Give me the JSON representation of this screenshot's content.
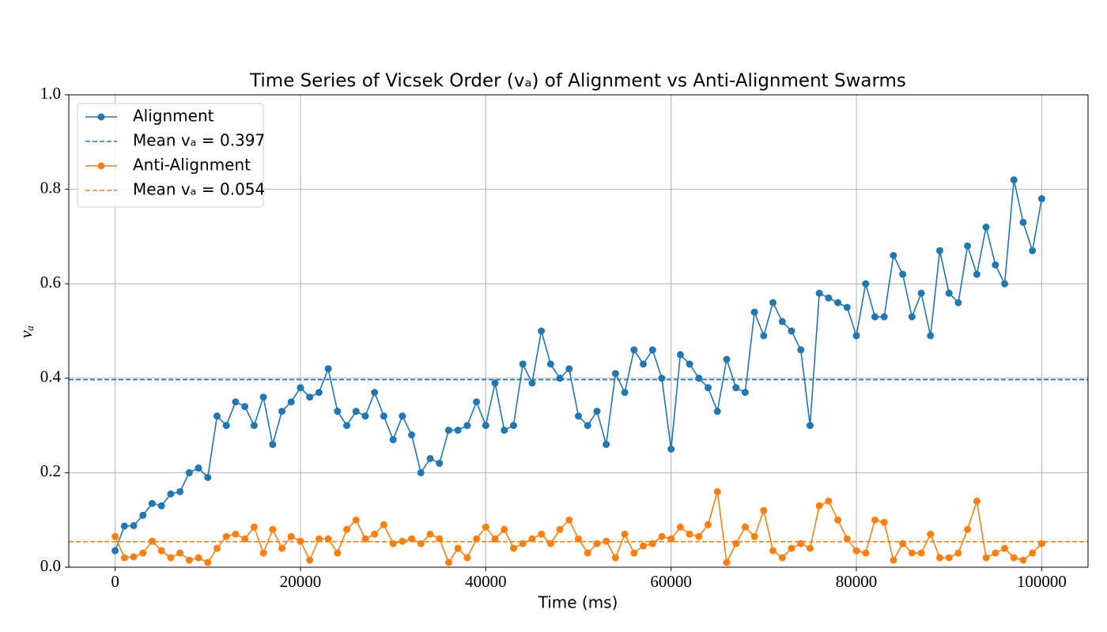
{
  "chart_data": {
    "type": "line",
    "title": "Time Series of Vicsek Order (vₐ) of Alignment vs Anti-Alignment Swarms",
    "x_label": "Time (ms)",
    "y_label": "vₐ",
    "x": [
      0,
      1000,
      2000,
      3000,
      4000,
      5000,
      6000,
      7000,
      8000,
      9000,
      10000,
      11000,
      12000,
      13000,
      14000,
      15000,
      16000,
      17000,
      18000,
      19000,
      20000,
      21000,
      22000,
      23000,
      24000,
      25000,
      26000,
      27000,
      28000,
      29000,
      30000,
      31000,
      32000,
      33000,
      34000,
      35000,
      36000,
      37000,
      38000,
      39000,
      40000,
      41000,
      42000,
      43000,
      44000,
      45000,
      46000,
      47000,
      48000,
      49000,
      50000,
      51000,
      52000,
      53000,
      54000,
      55000,
      56000,
      57000,
      58000,
      59000,
      60000,
      61000,
      62000,
      63000,
      64000,
      65000,
      66000,
      67000,
      68000,
      69000,
      70000,
      71000,
      72000,
      73000,
      74000,
      75000,
      76000,
      77000,
      78000,
      79000,
      80000,
      81000,
      82000,
      83000,
      84000,
      85000,
      86000,
      87000,
      88000,
      89000,
      90000,
      91000,
      92000,
      93000,
      94000,
      95000,
      96000,
      97000,
      98000,
      99000,
      100000
    ],
    "series": [
      {
        "name": "Alignment",
        "color": "#1f77b4",
        "values": [
          0.035,
          0.087,
          0.088,
          0.11,
          0.135,
          0.13,
          0.155,
          0.16,
          0.2,
          0.21,
          0.19,
          0.32,
          0.3,
          0.35,
          0.34,
          0.3,
          0.36,
          0.26,
          0.33,
          0.35,
          0.38,
          0.36,
          0.37,
          0.42,
          0.33,
          0.3,
          0.33,
          0.32,
          0.37,
          0.32,
          0.27,
          0.32,
          0.28,
          0.2,
          0.23,
          0.22,
          0.29,
          0.29,
          0.3,
          0.35,
          0.3,
          0.39,
          0.29,
          0.3,
          0.43,
          0.39,
          0.5,
          0.43,
          0.4,
          0.42,
          0.32,
          0.3,
          0.33,
          0.26,
          0.41,
          0.37,
          0.46,
          0.43,
          0.46,
          0.4,
          0.25,
          0.45,
          0.43,
          0.4,
          0.38,
          0.33,
          0.44,
          0.38,
          0.37,
          0.54,
          0.49,
          0.56,
          0.52,
          0.5,
          0.46,
          0.3,
          0.58,
          0.57,
          0.56,
          0.55,
          0.49,
          0.6,
          0.53,
          0.53,
          0.66,
          0.62,
          0.53,
          0.58,
          0.49,
          0.67,
          0.58,
          0.56,
          0.68,
          0.62,
          0.72,
          0.64,
          0.6,
          0.82,
          0.73,
          0.67,
          0.78
        ],
        "mean": {
          "label": "Mean vₐ = 0.397",
          "value": 0.397
        }
      },
      {
        "name": "Anti-Alignment",
        "color": "#ff7f0e",
        "values": [
          0.065,
          0.02,
          0.022,
          0.03,
          0.055,
          0.035,
          0.02,
          0.03,
          0.015,
          0.02,
          0.01,
          0.04,
          0.065,
          0.07,
          0.06,
          0.085,
          0.03,
          0.08,
          0.04,
          0.065,
          0.055,
          0.015,
          0.06,
          0.06,
          0.03,
          0.08,
          0.1,
          0.06,
          0.07,
          0.09,
          0.05,
          0.055,
          0.06,
          0.05,
          0.07,
          0.06,
          0.01,
          0.04,
          0.02,
          0.06,
          0.085,
          0.06,
          0.08,
          0.04,
          0.05,
          0.06,
          0.07,
          0.05,
          0.08,
          0.1,
          0.06,
          0.03,
          0.05,
          0.055,
          0.02,
          0.07,
          0.03,
          0.045,
          0.05,
          0.065,
          0.06,
          0.085,
          0.07,
          0.065,
          0.09,
          0.16,
          0.01,
          0.05,
          0.085,
          0.065,
          0.12,
          0.035,
          0.02,
          0.04,
          0.05,
          0.04,
          0.13,
          0.14,
          0.1,
          0.06,
          0.035,
          0.03,
          0.1,
          0.095,
          0.015,
          0.05,
          0.03,
          0.03,
          0.07,
          0.02,
          0.02,
          0.03,
          0.08,
          0.14,
          0.02,
          0.03,
          0.04,
          0.02,
          0.015,
          0.03,
          0.05
        ],
        "mean": {
          "label": "Mean vₐ = 0.054",
          "value": 0.054
        }
      }
    ],
    "xlim": [
      -5000,
      105000
    ],
    "ylim": [
      0,
      1
    ],
    "xticks": [
      0,
      20000,
      40000,
      60000,
      80000,
      100000
    ],
    "yticks": [
      {
        "value": 0,
        "label": "0.0"
      },
      {
        "value": 0.2,
        "label": "0.2"
      },
      {
        "value": 0.4,
        "label": "0.4"
      },
      {
        "value": 0.6,
        "label": "0.6"
      },
      {
        "value": 0.8,
        "label": "0.8"
      },
      {
        "value": 1,
        "label": "1.0"
      }
    ],
    "grid": true,
    "legend": "upper left"
  }
}
